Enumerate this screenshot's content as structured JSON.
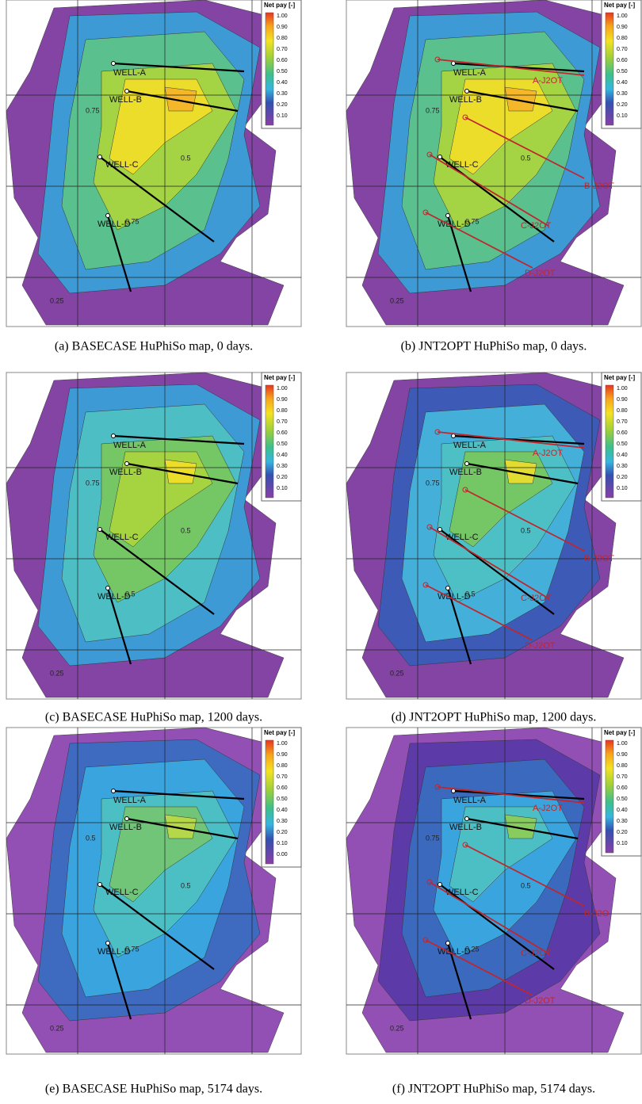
{
  "panels": [
    {
      "caption": "(a)  BASECASE HuPhiSo map, 0 days.",
      "legend_title": "Net pay [-]",
      "legend_labels": [
        "1.00",
        "0.90",
        "0.80",
        "0.70",
        "0.60",
        "0.50",
        "0.40",
        "0.30",
        "0.20",
        "0.10"
      ],
      "wells": [
        "WELL-A",
        "WELL-B",
        "WELL-C",
        "WELL-D"
      ],
      "contour_labels": [
        "0.75",
        "0.5",
        "0.75",
        "0.25"
      ]
    },
    {
      "caption": "(b)  JNT2OPT HuPhiSo map, 0 days.",
      "legend_title": "Net pay [-]",
      "legend_labels": [
        "1.00",
        "0.90",
        "0.80",
        "0.70",
        "0.60",
        "0.50",
        "0.40",
        "0.30",
        "0.20",
        "0.10"
      ],
      "wells": [
        "WELL-A",
        "WELL-B",
        "WELL-C",
        "WELL-D"
      ],
      "opt_wells": [
        "A-J2OT",
        "B-J2OT",
        "C-J2OT",
        "D-J2OT"
      ],
      "contour_labels": [
        "0.75",
        "0.5",
        "0.75",
        "0.25"
      ]
    },
    {
      "caption": "(c)  BASECASE HuPhiSo map, 1200 days.",
      "legend_title": "Net pay [-]",
      "legend_labels": [
        "1.00",
        "0.90",
        "0.80",
        "0.70",
        "0.60",
        "0.50",
        "0.40",
        "0.30",
        "0.20",
        "0.10"
      ],
      "wells": [
        "WELL-A",
        "WELL-B",
        "WELL-C",
        "WELL-D"
      ],
      "contour_labels": [
        "0.75",
        "0.5",
        "0.5",
        "0.25"
      ]
    },
    {
      "caption": "(d)  JNT2OPT HuPhiSo map, 1200 days.",
      "legend_title": "Net pay [-]",
      "legend_labels": [
        "1.00",
        "0.90",
        "0.80",
        "0.70",
        "0.60",
        "0.50",
        "0.40",
        "0.30",
        "0.20",
        "0.10"
      ],
      "wells": [
        "WELL-A",
        "WELL-B",
        "WELL-C",
        "WELL-D"
      ],
      "opt_wells": [
        "A-J2OT",
        "B-J2OT",
        "C-J2OT",
        "D-J2OT"
      ],
      "contour_labels": [
        "0.75",
        "0.5",
        "0.5",
        "0.25"
      ]
    },
    {
      "caption": "(e)  BASECASE HuPhiSo map, 5174 days.",
      "legend_title": "Net pay [-]",
      "legend_labels": [
        "1.00",
        "0.90",
        "0.80",
        "0.70",
        "0.60",
        "0.50",
        "0.40",
        "0.30",
        "0.20",
        "0.10",
        "0.00"
      ],
      "wells": [
        "WELL-A",
        "WELL-B",
        "WELL-C",
        "WELL-D"
      ],
      "contour_labels": [
        "0.5",
        "0.5",
        "0.75",
        "0.25"
      ]
    },
    {
      "caption": "(f)  JNT2OPT HuPhiSo map, 5174 days.",
      "legend_title": "Net pay [-]",
      "legend_labels": [
        "1.00",
        "0.90",
        "0.80",
        "0.70",
        "0.60",
        "0.50",
        "0.40",
        "0.30",
        "0.20",
        "0.10"
      ],
      "wells": [
        "WELL-A",
        "WELL-B",
        "WELL-C",
        "WELL-D"
      ],
      "opt_wells": [
        "A-J2OT",
        "B-J2O",
        "C-J2OT",
        "D-J2OT"
      ],
      "contour_labels": [
        "0.75",
        "0.5",
        "0.25",
        "0.25"
      ]
    }
  ]
}
